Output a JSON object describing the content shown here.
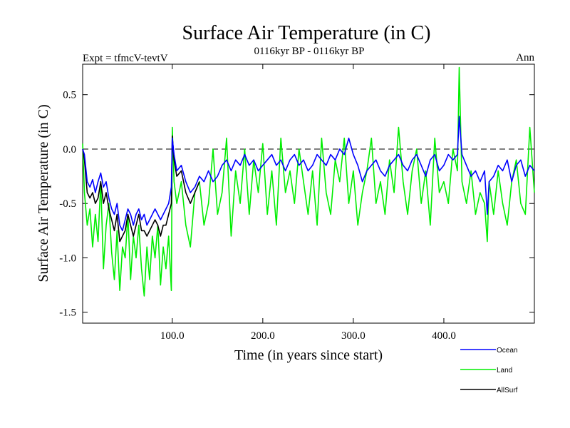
{
  "chart_data": {
    "type": "line",
    "title": "Surface Air Temperature (in C)",
    "subtitle": "0116kyr BP - 0116kyr BP",
    "left_label": "Expt = tfmcV-tevtV",
    "right_label": "Ann",
    "xlabel": "Time (in years since start)",
    "ylabel": "Surface Air Temperature (in C)",
    "xlim": [
      1,
      500
    ],
    "ylim": [
      -1.6,
      0.78
    ],
    "x_ticks": [
      100,
      200,
      300,
      400
    ],
    "x_tick_labels": [
      "100.0",
      "200.0",
      "300.0",
      "400.0"
    ],
    "y_ticks": [
      -1.5,
      -1.0,
      -0.5,
      0.0,
      0.5
    ],
    "y_tick_labels": [
      "-1.5",
      "-1.0",
      "-0.5",
      "0.0",
      "0.5"
    ],
    "reference_line": 0.0,
    "grid": false,
    "legend_position": "below-right",
    "series": [
      {
        "name": "Ocean",
        "color": "#0000ff",
        "x": [
          1,
          3,
          6,
          9,
          12,
          15,
          18,
          21,
          24,
          27,
          30,
          33,
          36,
          39,
          42,
          45,
          48,
          51,
          54,
          57,
          60,
          63,
          66,
          69,
          72,
          75,
          78,
          81,
          84,
          87,
          90,
          93,
          96,
          99,
          100,
          102,
          105,
          110,
          115,
          120,
          125,
          130,
          135,
          140,
          145,
          150,
          155,
          160,
          165,
          170,
          175,
          180,
          185,
          190,
          195,
          200,
          205,
          210,
          215,
          220,
          225,
          230,
          235,
          240,
          245,
          250,
          255,
          260,
          265,
          270,
          275,
          280,
          285,
          290,
          295,
          300,
          305,
          310,
          315,
          320,
          325,
          330,
          335,
          340,
          345,
          350,
          355,
          360,
          365,
          370,
          375,
          380,
          385,
          390,
          395,
          400,
          405,
          410,
          415,
          417,
          420,
          425,
          430,
          435,
          440,
          445,
          448,
          450,
          455,
          460,
          465,
          470,
          475,
          480,
          485,
          490,
          495,
          500
        ],
        "y": [
          0.0,
          -0.05,
          -0.3,
          -0.35,
          -0.28,
          -0.4,
          -0.3,
          -0.22,
          -0.35,
          -0.3,
          -0.45,
          -0.55,
          -0.6,
          -0.5,
          -0.7,
          -0.75,
          -0.65,
          -0.55,
          -0.6,
          -0.7,
          -0.6,
          -0.55,
          -0.65,
          -0.6,
          -0.7,
          -0.65,
          -0.6,
          -0.55,
          -0.6,
          -0.65,
          -0.6,
          -0.55,
          -0.5,
          -0.35,
          0.1,
          -0.05,
          -0.2,
          -0.15,
          -0.3,
          -0.4,
          -0.35,
          -0.25,
          -0.3,
          -0.2,
          -0.3,
          -0.25,
          -0.15,
          -0.1,
          -0.2,
          -0.1,
          -0.15,
          -0.05,
          -0.15,
          -0.1,
          -0.2,
          -0.15,
          -0.1,
          -0.05,
          -0.15,
          -0.1,
          -0.2,
          -0.1,
          -0.05,
          -0.15,
          -0.1,
          -0.2,
          -0.15,
          -0.05,
          -0.1,
          -0.15,
          -0.05,
          -0.1,
          0.0,
          -0.05,
          0.1,
          -0.05,
          -0.15,
          -0.3,
          -0.2,
          -0.15,
          -0.1,
          -0.2,
          -0.25,
          -0.15,
          -0.1,
          -0.05,
          -0.15,
          -0.2,
          -0.1,
          -0.05,
          -0.15,
          -0.25,
          -0.1,
          -0.05,
          -0.2,
          -0.15,
          -0.05,
          -0.1,
          -0.05,
          0.3,
          -0.05,
          -0.15,
          -0.25,
          -0.2,
          -0.3,
          -0.2,
          -0.6,
          -0.3,
          -0.25,
          -0.15,
          -0.2,
          -0.1,
          -0.3,
          -0.15,
          -0.1,
          -0.25,
          -0.15,
          -0.2
        ]
      },
      {
        "name": "Land",
        "color": "#00ee00",
        "x": [
          1,
          3,
          6,
          9,
          12,
          15,
          18,
          21,
          24,
          27,
          30,
          33,
          36,
          39,
          42,
          45,
          48,
          51,
          54,
          57,
          60,
          63,
          66,
          69,
          72,
          75,
          78,
          81,
          84,
          87,
          90,
          93,
          96,
          99,
          100,
          102,
          105,
          110,
          115,
          120,
          125,
          130,
          135,
          140,
          145,
          150,
          155,
          160,
          165,
          170,
          175,
          180,
          185,
          190,
          195,
          200,
          205,
          210,
          215,
          220,
          225,
          230,
          235,
          240,
          245,
          250,
          255,
          260,
          265,
          270,
          275,
          280,
          285,
          290,
          295,
          300,
          305,
          310,
          315,
          320,
          325,
          330,
          335,
          340,
          345,
          350,
          355,
          360,
          365,
          370,
          375,
          380,
          385,
          390,
          395,
          400,
          405,
          410,
          415,
          417,
          420,
          425,
          430,
          435,
          440,
          445,
          448,
          450,
          455,
          460,
          465,
          470,
          475,
          480,
          485,
          490,
          495,
          500
        ],
        "y": [
          0.05,
          -0.4,
          -0.7,
          -0.55,
          -0.9,
          -0.6,
          -0.85,
          -0.3,
          -1.1,
          -0.7,
          -0.5,
          -0.95,
          -1.2,
          -0.75,
          -1.3,
          -0.9,
          -1.0,
          -0.6,
          -1.2,
          -0.8,
          -1.0,
          -0.7,
          -1.1,
          -1.35,
          -0.9,
          -1.2,
          -0.8,
          -1.0,
          -0.7,
          -1.25,
          -0.9,
          -1.1,
          -0.8,
          -1.3,
          0.2,
          -0.3,
          -0.5,
          -0.3,
          -0.7,
          -0.9,
          -0.4,
          -0.3,
          -0.7,
          -0.5,
          0.0,
          -0.6,
          -0.4,
          0.1,
          -0.8,
          -0.2,
          -0.5,
          0.0,
          -0.6,
          -0.1,
          -0.4,
          0.05,
          -0.6,
          -0.2,
          -0.7,
          0.1,
          -0.4,
          -0.2,
          -0.5,
          0.0,
          -0.3,
          -0.6,
          -0.2,
          -0.7,
          0.1,
          -0.4,
          -0.6,
          -0.1,
          -0.3,
          0.1,
          -0.5,
          -0.2,
          -0.7,
          -0.4,
          -0.2,
          0.1,
          -0.5,
          -0.3,
          -0.6,
          -0.1,
          -0.4,
          0.2,
          -0.3,
          -0.6,
          -0.2,
          0.0,
          -0.5,
          -0.2,
          -0.7,
          0.1,
          -0.4,
          -0.3,
          -0.5,
          0.0,
          -0.2,
          0.75,
          -0.3,
          -0.5,
          -0.2,
          -0.6,
          -0.4,
          -0.5,
          -0.85,
          -0.3,
          -0.6,
          -0.2,
          -0.5,
          -0.7,
          -0.3,
          -0.1,
          -0.5,
          -0.6,
          0.2,
          -0.4
        ]
      },
      {
        "name": "AllSurf",
        "color": "#000000",
        "x": [
          1,
          3,
          6,
          9,
          12,
          15,
          18,
          21,
          24,
          27,
          30,
          33,
          36,
          39,
          42,
          45,
          48,
          51,
          54,
          57,
          60,
          63,
          66,
          69,
          72,
          75,
          78,
          81,
          84,
          87,
          90,
          93,
          96,
          99,
          100,
          102,
          105,
          110,
          115,
          120,
          125,
          130
        ],
        "y": [
          0.0,
          -0.1,
          -0.4,
          -0.45,
          -0.4,
          -0.5,
          -0.45,
          -0.3,
          -0.5,
          -0.4,
          -0.55,
          -0.65,
          -0.75,
          -0.6,
          -0.85,
          -0.8,
          -0.75,
          -0.6,
          -0.7,
          -0.8,
          -0.7,
          -0.6,
          -0.75,
          -0.75,
          -0.8,
          -0.75,
          -0.7,
          -0.65,
          -0.7,
          -0.8,
          -0.7,
          -0.7,
          -0.6,
          -0.5,
          0.12,
          -0.1,
          -0.25,
          -0.2,
          -0.4,
          -0.5,
          -0.4,
          -0.3
        ]
      }
    ]
  }
}
